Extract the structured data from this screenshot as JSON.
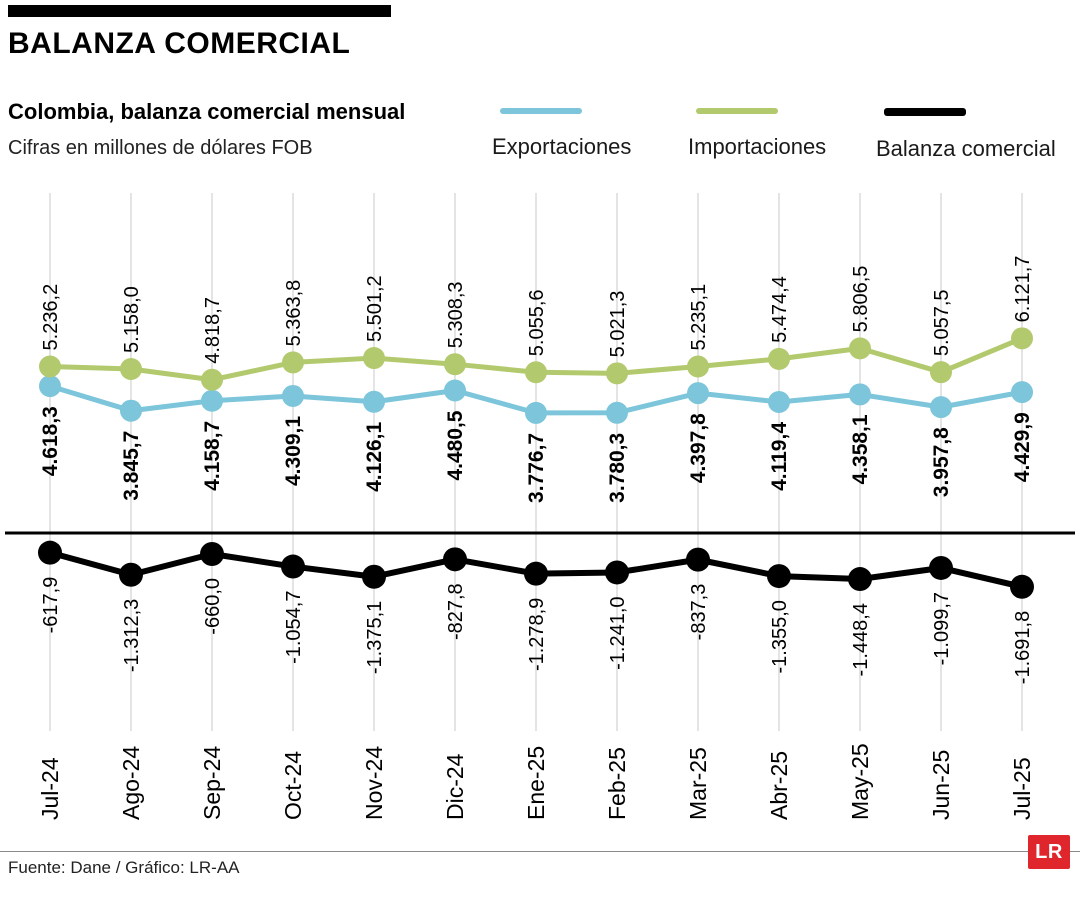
{
  "header": {
    "title": "BALANZA COMERCIAL",
    "subtitle": "Colombia, balanza comercial mensual",
    "units_note": "Cifras en millones de dólares FOB"
  },
  "legend": [
    {
      "label": "Exportaciones",
      "color": "#7cc5da"
    },
    {
      "label": "Importaciones",
      "color": "#b3c96d"
    },
    {
      "label": "Balanza comercial",
      "color": "#000000"
    }
  ],
  "chart_data": {
    "type": "line",
    "title": "Colombia, balanza comercial mensual",
    "units": "millones de dólares FOB",
    "grid": "vertical",
    "zero_line": true,
    "categories": [
      "Jul-24",
      "Ago-24",
      "Sep-24",
      "Oct-24",
      "Nov-24",
      "Dic-24",
      "Ene-25",
      "Feb-25",
      "Mar-25",
      "Abr-25",
      "May-25",
      "Jun-25",
      "Jul-25"
    ],
    "series": [
      {
        "name": "Exportaciones",
        "color": "#7cc5da",
        "values": [
          4618.3,
          3845.7,
          4158.7,
          4309.1,
          4126.1,
          4480.5,
          3776.7,
          3780.3,
          4397.8,
          4119.4,
          4358.1,
          3957.8,
          4429.9
        ],
        "labels": [
          "4.618,3",
          "3.845,7",
          "4.158,7",
          "4.309,1",
          "4.126,1",
          "4.480,5",
          "3.776,7",
          "3.780,3",
          "4.397,8",
          "4.119,4",
          "4.358,1",
          "3.957,8",
          "4.429,9"
        ]
      },
      {
        "name": "Importaciones",
        "color": "#b3c96d",
        "values": [
          5236.2,
          5158.0,
          4818.7,
          5363.8,
          5501.2,
          5308.3,
          5055.6,
          5021.3,
          5235.1,
          5474.4,
          5806.5,
          5057.5,
          6121.7
        ],
        "labels": [
          "5.236,2",
          "5.158,0",
          "4.818,7",
          "5.363,8",
          "5.501,2",
          "5.308,3",
          "5.055,6",
          "5.021,3",
          "5.235,1",
          "5.474,4",
          "5.806,5",
          "5.057,5",
          "6.121,7"
        ]
      },
      {
        "name": "Balanza comercial",
        "color": "#000000",
        "values": [
          -617.9,
          -1312.3,
          -660.0,
          -1054.7,
          -1375.1,
          -827.8,
          -1278.9,
          -1241.0,
          -837.3,
          -1355.0,
          -1448.4,
          -1099.7,
          -1691.8
        ],
        "labels": [
          "-617,9",
          "-1.312,3",
          "-660,0",
          "-1.054,7",
          "-1.375,1",
          "-827,8",
          "-1.278,9",
          "-1.241,0",
          "-837,3",
          "-1.355,0",
          "-1.448,4",
          "-1.099,7",
          "-1.691,8"
        ]
      }
    ]
  },
  "footer": {
    "source": "Fuente: Dane / Gráfico: LR-AA",
    "logo_text": "LR",
    "logo_color": "#e0262d"
  }
}
